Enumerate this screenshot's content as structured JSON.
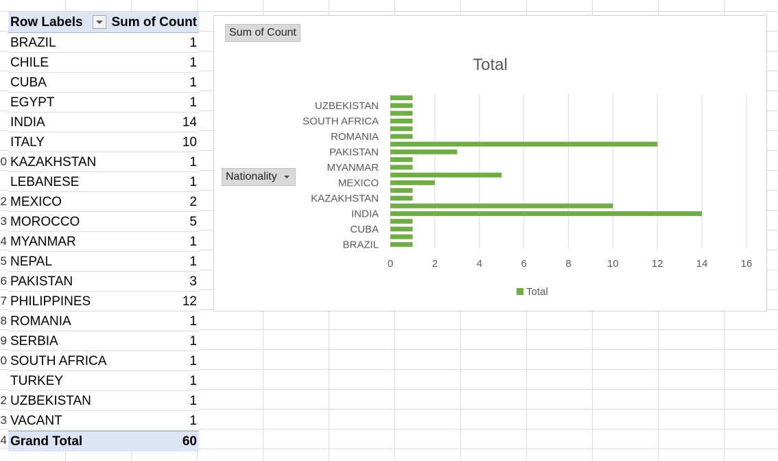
{
  "pivot": {
    "header_label": "Row Labels",
    "header_value": "Sum of Count",
    "rows": [
      {
        "label": "BRAZIL",
        "value": "1"
      },
      {
        "label": "CHILE",
        "value": "1"
      },
      {
        "label": "CUBA",
        "value": "1"
      },
      {
        "label": "EGYPT",
        "value": "1"
      },
      {
        "label": "INDIA",
        "value": "14"
      },
      {
        "label": "ITALY",
        "value": "10"
      },
      {
        "label": "KAZAKHSTAN",
        "value": "1"
      },
      {
        "label": "LEBANESE",
        "value": "1"
      },
      {
        "label": "MEXICO",
        "value": "2"
      },
      {
        "label": "MOROCCO",
        "value": "5"
      },
      {
        "label": "MYANMAR",
        "value": "1"
      },
      {
        "label": "NEPAL",
        "value": "1"
      },
      {
        "label": "PAKISTAN",
        "value": "3"
      },
      {
        "label": "PHILIPPINES",
        "value": "12"
      },
      {
        "label": "ROMANIA",
        "value": "1"
      },
      {
        "label": "SERBIA",
        "value": "1"
      },
      {
        "label": "SOUTH AFRICA",
        "value": "1"
      },
      {
        "label": "TURKEY",
        "value": "1"
      },
      {
        "label": "UZBEKISTAN",
        "value": "1"
      },
      {
        "label": "VACANT",
        "value": "1"
      }
    ],
    "total_label": "Grand Total",
    "total_value": "60"
  },
  "row_numbers_visible": [
    "0",
    "",
    "2",
    "3",
    "4",
    "5",
    "6",
    "7",
    "8",
    "9",
    "0",
    "",
    "2",
    "3",
    "4"
  ],
  "chart": {
    "value_field_button": "Sum of Count",
    "axis_field_button": "Nationality"
  },
  "chart_data": {
    "type": "bar",
    "orientation": "horizontal",
    "title": "Total",
    "categories": [
      "BRAZIL",
      "CHILE",
      "CUBA",
      "EGYPT",
      "INDIA",
      "ITALY",
      "KAZAKHSTAN",
      "LEBANESE",
      "MEXICO",
      "MOROCCO",
      "MYANMAR",
      "NEPAL",
      "PAKISTAN",
      "PHILIPPINES",
      "ROMANIA",
      "SERBIA",
      "SOUTH AFRICA",
      "TURKEY",
      "UZBEKISTAN",
      "VACANT"
    ],
    "visible_category_labels": [
      "BRAZIL",
      "CUBA",
      "INDIA",
      "KAZAKHSTAN",
      "MEXICO",
      "MYANMAR",
      "PAKISTAN",
      "ROMANIA",
      "SOUTH AFRICA",
      "UZBEKISTAN"
    ],
    "series": [
      {
        "name": "Total",
        "values": [
          1,
          1,
          1,
          1,
          14,
          10,
          1,
          1,
          2,
          5,
          1,
          1,
          3,
          12,
          1,
          1,
          1,
          1,
          1,
          1
        ]
      }
    ],
    "xlim": [
      0,
      16
    ],
    "xticks": [
      "0",
      "2",
      "4",
      "6",
      "8",
      "10",
      "12",
      "14",
      "16"
    ],
    "grid": true,
    "legend": "bottom",
    "bar_color": "#70ad47"
  }
}
